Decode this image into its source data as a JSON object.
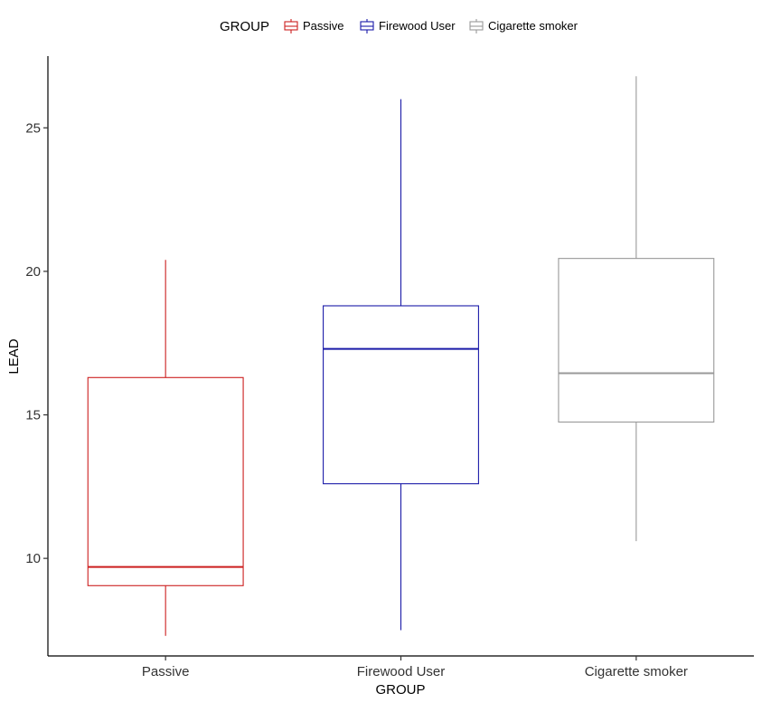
{
  "chart_data": {
    "type": "boxplot",
    "xlabel": "GROUP",
    "ylabel": "LEAD",
    "ylim": [
      6.6,
      27.5
    ],
    "yticks": [
      10,
      15,
      20,
      25
    ],
    "grid": false,
    "legend": {
      "title": "GROUP",
      "position": "top"
    },
    "categories": [
      "Passive",
      "Firewood User",
      "Cigarette smoker"
    ],
    "series": [
      {
        "name": "Passive",
        "color": "#cc1f1f",
        "min": 7.3,
        "q1": 9.05,
        "median": 9.7,
        "q3": 16.3,
        "max": 20.4
      },
      {
        "name": "Firewood User",
        "color": "#1a1aa8",
        "min": 7.5,
        "q1": 12.6,
        "median": 17.3,
        "q3": 18.8,
        "max": 26.0
      },
      {
        "name": "Cigarette smoker",
        "color": "#999999",
        "min": 10.6,
        "q1": 14.75,
        "median": 16.45,
        "q3": 20.45,
        "max": 26.8
      }
    ]
  }
}
